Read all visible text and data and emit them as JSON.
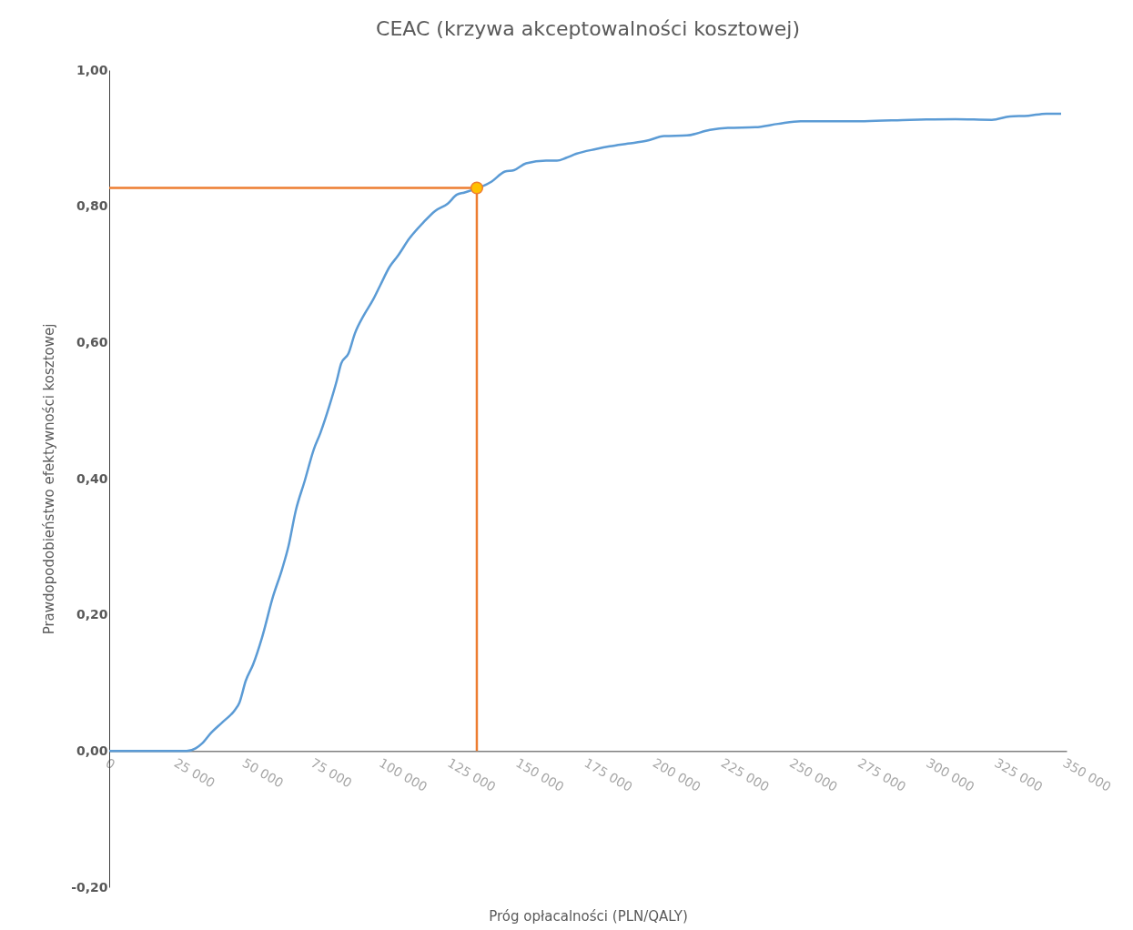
{
  "chart_data": {
    "type": "line",
    "title": "CEAC (krzywa akceptowalności kosztowej)",
    "xlabel": "Próg opłacalności (PLN/QALY)",
    "ylabel": "Prawdopodobieństwo efektywności kosztowej",
    "xlim": [
      0,
      350000
    ],
    "xticks": [
      0,
      {
        "value": 25000,
        "label": "25 000"
      },
      {
        "value": 50000,
        "label": "50 000"
      },
      {
        "value": 75000,
        "label": "75 000"
      },
      {
        "value": 100000,
        "label": "100 000"
      },
      {
        "value": 125000,
        "label": "125 000"
      },
      {
        "value": 150000,
        "label": "150 000"
      },
      {
        "value": 175000,
        "label": "175 000"
      },
      {
        "value": 200000,
        "label": "200 000"
      },
      {
        "value": 225000,
        "label": "225 000"
      },
      {
        "value": 250000,
        "label": "250 000"
      },
      {
        "value": 275000,
        "label": "275 000"
      },
      {
        "value": 300000,
        "label": "300 000"
      },
      {
        "value": 325000,
        "label": "325 000"
      },
      {
        "value": 350000,
        "label": "350 000"
      }
    ],
    "ylim": [
      -0.2,
      1
    ],
    "yticks": [
      {
        "value": -0.2,
        "label": "-0,20"
      },
      {
        "value": 0,
        "label": "0,00"
      },
      {
        "value": 0.2,
        "label": "0,20"
      },
      {
        "value": 0.4,
        "label": "0,40"
      },
      {
        "value": 0.6,
        "label": "0,60"
      },
      {
        "value": 0.8,
        "label": "0,80"
      },
      {
        "value": 1,
        "label": "1,00"
      }
    ],
    "series": [
      {
        "color": "#5b9bd5",
        "x": [
          0,
          25000,
          28300,
          31600,
          33900,
          37300,
          41600,
          45900,
          47600,
          49900,
          52600,
          55900,
          59900,
          63200,
          65500,
          68200,
          71500,
          74800,
          77200,
          80500,
          83200,
          84800,
          87500,
          89800,
          93100,
          96500,
          99100,
          102500,
          105500,
          109800,
          114800,
          119100,
          123800,
          127100,
          129700,
          139700,
          144700,
          148000,
          152400,
          159700,
          163700,
          167000,
          170700,
          178000,
          183000,
          189600,
          196300,
          202900,
          211200,
          219600,
          226200,
          236200,
          244500,
          252800,
          266100,
          276100,
          292700,
          309400,
          322700,
          329300,
          336000,
          342600,
          348000
        ],
        "values": [
          0,
          0,
          0,
          0.004,
          0.011,
          0.027,
          0.043,
          0.06,
          0.071,
          0.103,
          0.127,
          0.167,
          0.227,
          0.267,
          0.3,
          0.353,
          0.397,
          0.443,
          0.467,
          0.507,
          0.544,
          0.569,
          0.584,
          0.613,
          0.64,
          0.663,
          0.684,
          0.711,
          0.727,
          0.753,
          0.776,
          0.793,
          0.804,
          0.817,
          0.82,
          0.836,
          0.851,
          0.853,
          0.863,
          0.867,
          0.867,
          0.871,
          0.877,
          0.884,
          0.888,
          0.892,
          0.896,
          0.903,
          0.904,
          0.912,
          0.915,
          0.916,
          0.921,
          0.925,
          0.925,
          0.925,
          0.927,
          0.928,
          0.927,
          0.932,
          0.933,
          0.936,
          0.936
        ]
      },
      {
        "color": "#ed7d31",
        "x": [
          0,
          134400,
          134400
        ],
        "values": [
          0.827,
          0.827,
          0
        ]
      },
      {
        "type": "scatter",
        "color": "#ffc000",
        "x": [
          134400
        ],
        "values": [
          0.827
        ]
      }
    ]
  }
}
